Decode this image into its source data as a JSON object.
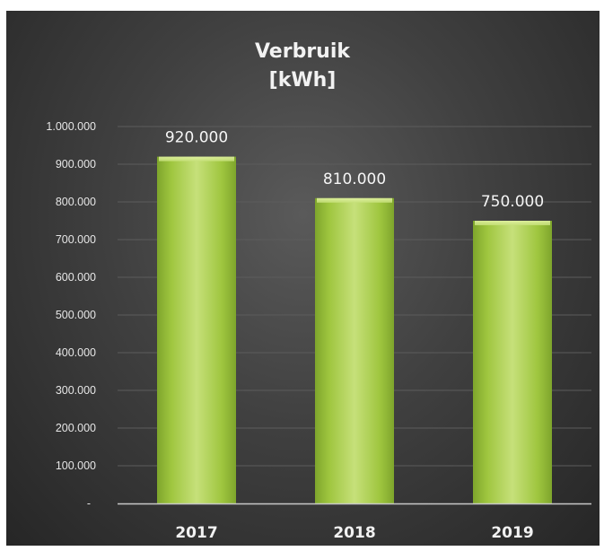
{
  "chart_data": {
    "type": "bar",
    "title_lines": [
      "Verbruik",
      "[kWh]"
    ],
    "categories": [
      "2017",
      "2018",
      "2019"
    ],
    "values": [
      920000,
      810000,
      750000
    ],
    "data_labels": [
      "920.000",
      "810.000",
      "750.000"
    ],
    "y_ticks": [
      0,
      100000,
      200000,
      300000,
      400000,
      500000,
      600000,
      700000,
      800000,
      900000,
      1000000
    ],
    "y_tick_labels": [
      "-",
      "100.000",
      "200.000",
      "300.000",
      "400.000",
      "500.000",
      "600.000",
      "700.000",
      "800.000",
      "900.000",
      "1.000.000"
    ],
    "ylim": [
      0,
      1000000
    ],
    "xlabel": "",
    "ylabel": "",
    "grid": true,
    "legend": "none",
    "colors": {
      "background_center": "#5a5a5a",
      "background_edge": "#262626",
      "bar_light": "#c6e07a",
      "bar_mid": "#9fc63f",
      "bar_dark": "#7ea52c",
      "gridline": "#5c5c5c",
      "axis_line": "#c8c8c8",
      "text": "#f2f2f2"
    }
  }
}
